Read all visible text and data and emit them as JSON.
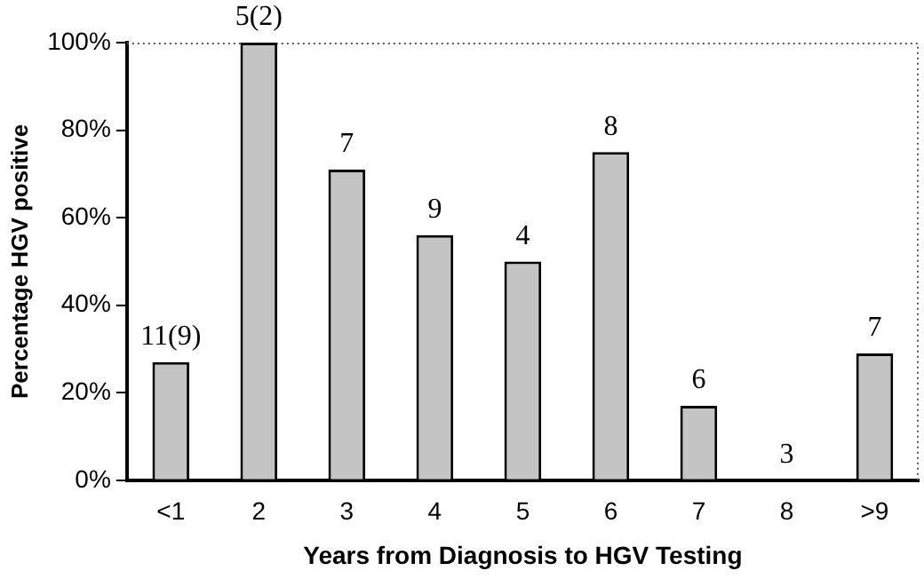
{
  "chart_data": {
    "type": "bar",
    "xlabel": "Years from Diagnosis to HGV Testing",
    "ylabel": "Percentage HGV positive",
    "categories": [
      "<1",
      "2",
      "3",
      "4",
      "5",
      "6",
      "7",
      "8",
      ">9"
    ],
    "values": [
      27,
      100,
      71,
      56,
      50,
      75,
      17,
      0,
      29
    ],
    "annotations": [
      {
        "text": "11(9)",
        "x": "<1",
        "y": 27
      },
      {
        "text": "5(2)",
        "x": "2",
        "y": 100
      },
      {
        "text": "7",
        "x": "3",
        "y": 71
      },
      {
        "text": "9",
        "x": "4",
        "y": 56
      },
      {
        "text": "4",
        "x": "5",
        "y": 50
      },
      {
        "text": "8",
        "x": "6",
        "y": 75
      },
      {
        "text": "6",
        "x": "7",
        "y": 17
      },
      {
        "text": "3",
        "x": "8",
        "y": 0
      },
      {
        "text": "7",
        "x": ">9",
        "y": 29
      }
    ],
    "color": "#c4c4c4",
    "ylim": [
      0,
      100
    ],
    "yticks": [
      {
        "value": 0,
        "label": "0%"
      },
      {
        "value": 20,
        "label": "20%"
      },
      {
        "value": 40,
        "label": "40%"
      },
      {
        "value": 60,
        "label": "60%"
      },
      {
        "value": 80,
        "label": "80%"
      },
      {
        "value": 100,
        "label": "100%"
      }
    ],
    "grid": false,
    "legend": false
  }
}
